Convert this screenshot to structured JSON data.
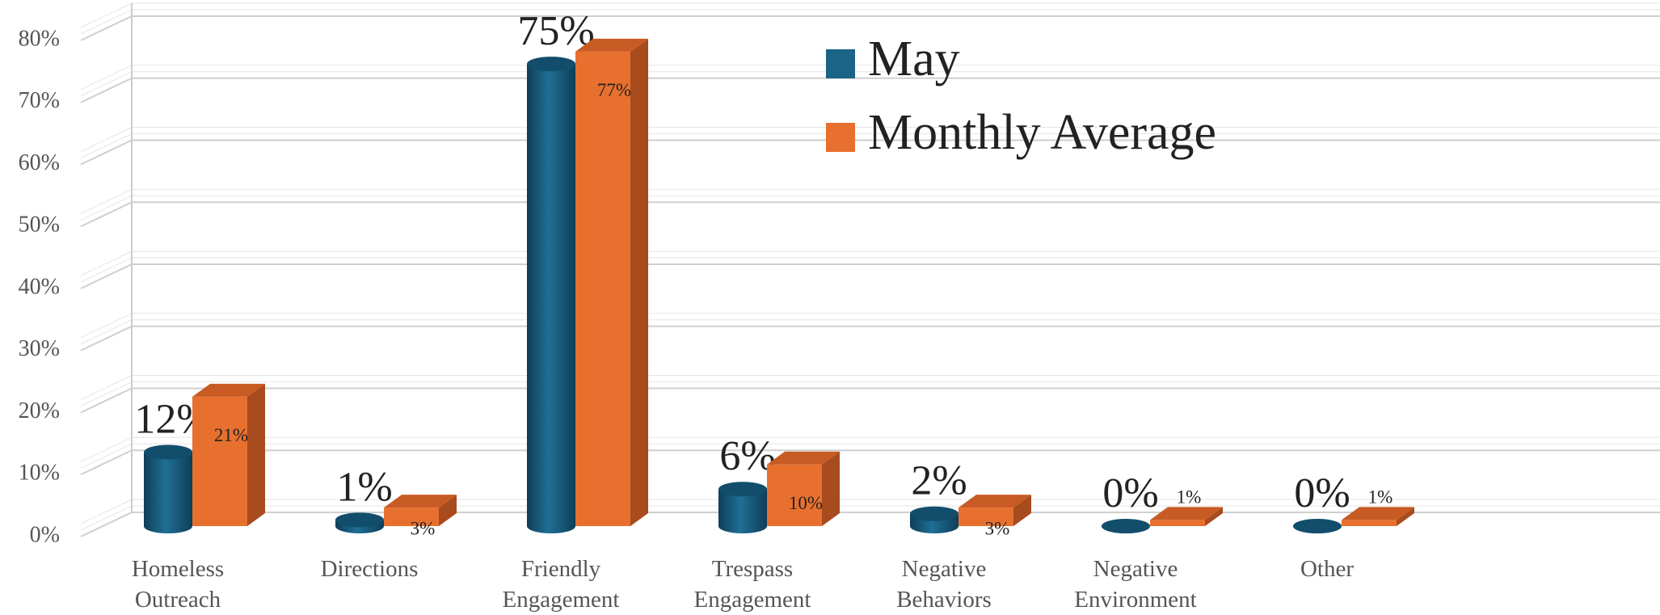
{
  "chart_data": {
    "type": "bar3d",
    "categories": [
      "Homeless Outreach",
      "Directions",
      "Friendly Engagement",
      "Trespass Engagement",
      "Negative Behaviors",
      "Negative Environment",
      "Other"
    ],
    "series": [
      {
        "name": "May",
        "color": "#1b6487",
        "values": [
          12,
          1,
          75,
          6,
          2,
          0,
          0
        ],
        "value_labels": [
          "12%",
          "1%",
          "75%",
          "6%",
          "2%",
          "0%",
          "0%"
        ]
      },
      {
        "name": "Monthly Average",
        "color": "#e8702f",
        "values": [
          21,
          3,
          77,
          10,
          3,
          1,
          1
        ],
        "value_labels": [
          "21%",
          "3%",
          "77%",
          "10%",
          "3%",
          "1%",
          "1%"
        ]
      }
    ],
    "ylim": [
      0,
      80
    ],
    "yticks": [
      {
        "value": 0,
        "label": "0%"
      },
      {
        "value": 10,
        "label": "10%"
      },
      {
        "value": 20,
        "label": "20%"
      },
      {
        "value": 30,
        "label": "30%"
      },
      {
        "value": 40,
        "label": "40%"
      },
      {
        "value": 50,
        "label": "50%"
      },
      {
        "value": 60,
        "label": "60%"
      },
      {
        "value": 70,
        "label": "70%"
      },
      {
        "value": 80,
        "label": "80%"
      }
    ],
    "grid": true
  }
}
